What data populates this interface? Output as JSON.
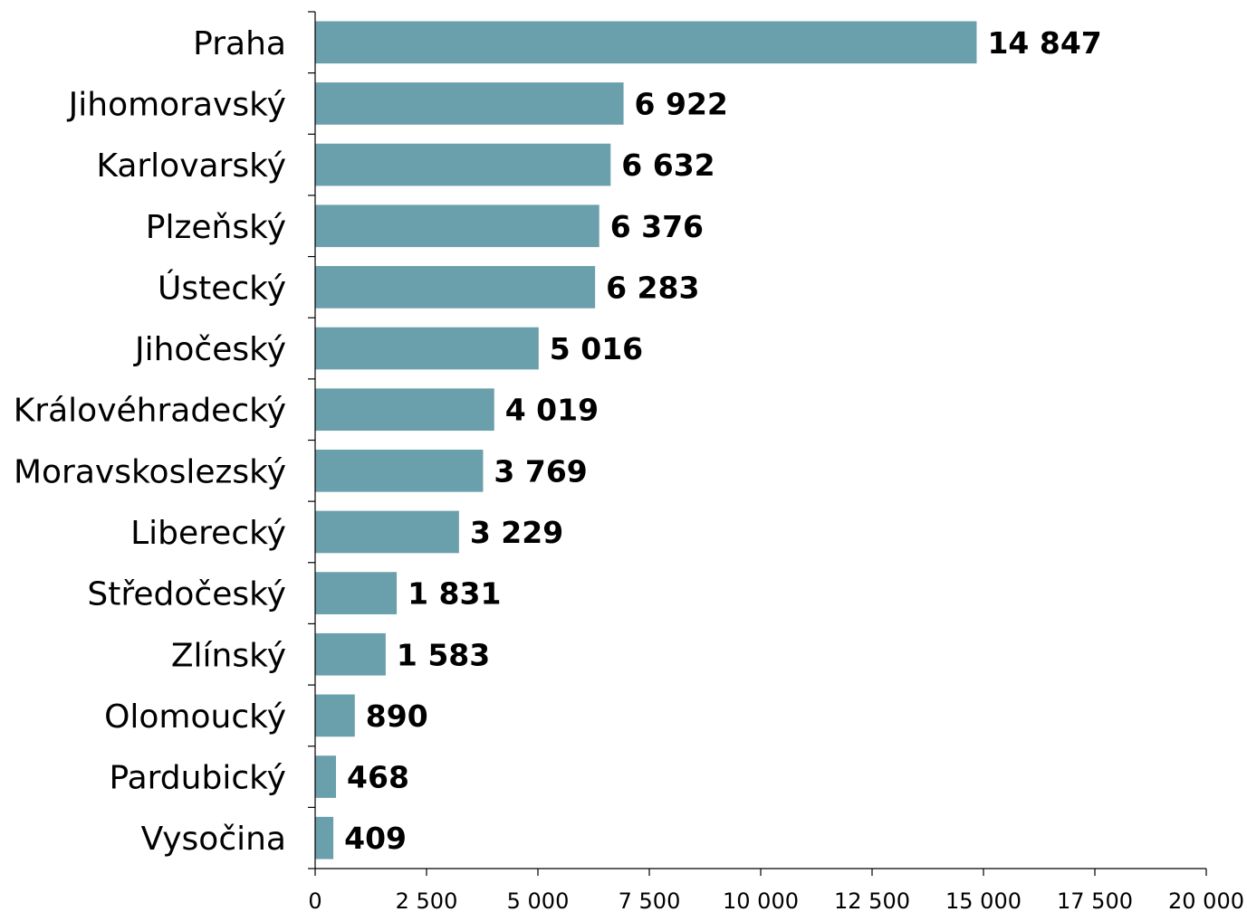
{
  "chart_data": {
    "type": "bar",
    "orientation": "horizontal",
    "categories": [
      "Praha",
      "Jihomoravský",
      "Karlovarský",
      "Plzeňský",
      "Ústecký",
      "Jihočeský",
      "Královéhradecký",
      "Moravskoslezský",
      "Liberecký",
      "Středočeský",
      "Zlínský",
      "Olomoucký",
      "Pardubický",
      "Vysočina"
    ],
    "values": [
      14847,
      6922,
      6632,
      6376,
      6283,
      5016,
      4019,
      3769,
      3229,
      1831,
      1583,
      890,
      468,
      409
    ],
    "value_labels": [
      "14 847",
      "6 922",
      "6 632",
      "6 376",
      "6 283",
      "5 016",
      "4 019",
      "3 769",
      "3 229",
      "1 831",
      "1 583",
      "890",
      "468",
      "409"
    ],
    "xlim": [
      0,
      20000
    ],
    "xticks": [
      0,
      2500,
      5000,
      7500,
      10000,
      12500,
      15000,
      17500,
      20000
    ],
    "xtick_labels": [
      "0",
      "2 500",
      "5 000",
      "7 500",
      "10 000",
      "12 500",
      "15 000",
      "17 500",
      "20 000"
    ],
    "grid": false,
    "legend": "none",
    "bar_color": "#6a9fac"
  }
}
